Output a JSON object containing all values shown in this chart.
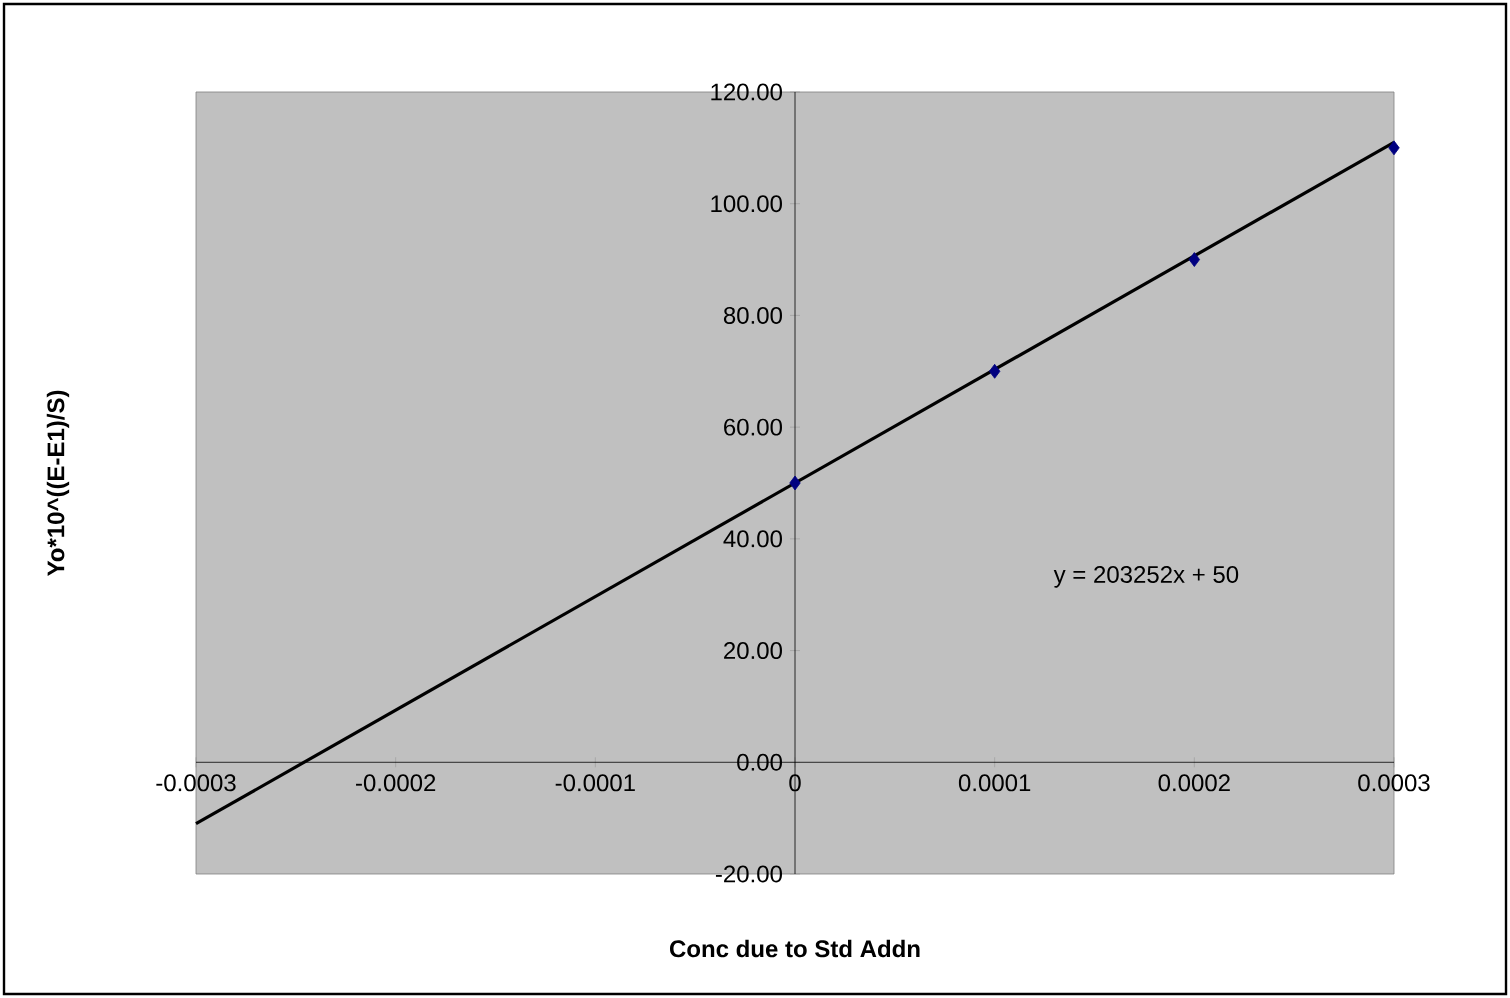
{
  "chart_data": {
    "type": "scatter",
    "xlabel": "Conc due to Std Addn",
    "ylabel": "Yo*10^((E-E1)/S)",
    "annotations": [
      "y = 203252x + 50"
    ],
    "series": [
      {
        "color": "#000080",
        "marker": "diamond",
        "x": [
          0,
          0.0001,
          0.0002,
          0.0003
        ],
        "values": [
          50,
          70,
          90,
          110
        ]
      },
      {
        "type": "line",
        "color": "#000000",
        "marker": "none",
        "x": [
          -0.0003,
          0.0003
        ],
        "values": [
          -11,
          111
        ]
      }
    ],
    "xlim": [
      -0.0003,
      0.0003
    ],
    "ylim": [
      -20,
      120
    ],
    "xticks": [
      {
        "value": -0.0003,
        "label": "-0.0003"
      },
      {
        "value": -0.0002,
        "label": "-0.0002"
      },
      {
        "value": -0.0001,
        "label": "-0.0001"
      },
      {
        "value": 0,
        "label": "0"
      },
      {
        "value": 0.0001,
        "label": "0.0001"
      },
      {
        "value": 0.0002,
        "label": "0.0002"
      },
      {
        "value": 0.0003,
        "label": "0.0003"
      }
    ],
    "yticks": [
      {
        "value": -20,
        "label": "-20.00"
      },
      {
        "value": 0,
        "label": "0.00"
      },
      {
        "value": 20,
        "label": "20.00"
      },
      {
        "value": 40,
        "label": "40.00"
      },
      {
        "value": 60,
        "label": "60.00"
      },
      {
        "value": 80,
        "label": "80.00"
      },
      {
        "value": 100,
        "label": "100.00"
      },
      {
        "value": 120,
        "label": "120.00"
      }
    ]
  }
}
